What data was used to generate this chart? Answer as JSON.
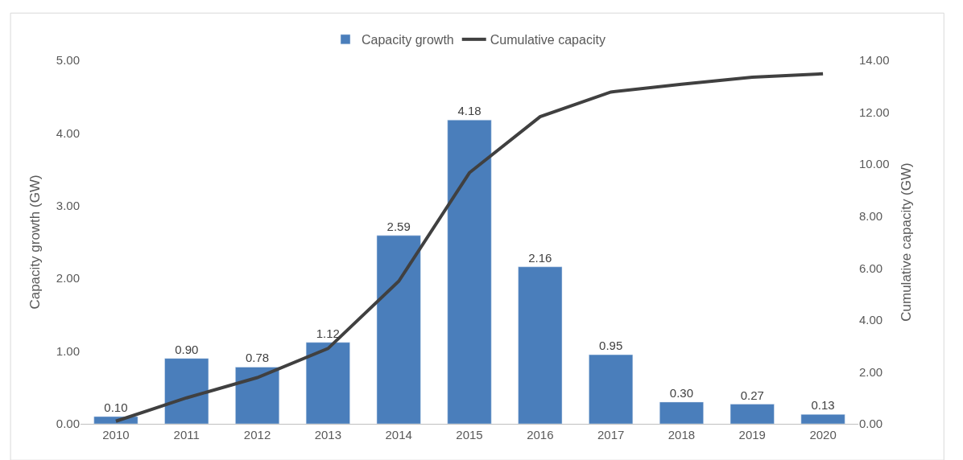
{
  "chart_data": {
    "type": "bar",
    "categories": [
      "2010",
      "2011",
      "2012",
      "2013",
      "2014",
      "2015",
      "2016",
      "2017",
      "2018",
      "2019",
      "2020"
    ],
    "ylabel": "Capacity growth (GW)",
    "y2label": "Cumulative capacity (GW)",
    "series": [
      {
        "name": "Capacity growth",
        "color": "#4a7ebb",
        "values": [
          0.1,
          0.9,
          0.78,
          1.12,
          2.59,
          4.18,
          2.16,
          0.95,
          0.3,
          0.27,
          0.13
        ],
        "value_labels": [
          "0.10",
          "0.90",
          "0.78",
          "1.12",
          "2.59",
          "4.18",
          "2.16",
          "0.95",
          "0.30",
          "0.27",
          "0.13"
        ]
      },
      {
        "name": "Cumulative capacity",
        "type": "line",
        "axis": "y2",
        "color": "#404040",
        "marker": "none",
        "values": [
          0.1,
          1.0,
          1.78,
          2.9,
          5.49,
          9.67,
          11.83,
          12.78,
          13.08,
          13.35,
          13.48
        ]
      }
    ],
    "ylim": [
      0,
      5
    ],
    "yticks": [
      {
        "value": 0,
        "label": "0.00"
      },
      {
        "value": 1,
        "label": "1.00"
      },
      {
        "value": 2,
        "label": "2.00"
      },
      {
        "value": 3,
        "label": "3.00"
      },
      {
        "value": 4,
        "label": "4.00"
      },
      {
        "value": 5,
        "label": "5.00"
      }
    ],
    "y2lim": [
      0,
      14
    ],
    "y2ticks": [
      {
        "value": 0,
        "label": "0.00"
      },
      {
        "value": 2,
        "label": "2.00"
      },
      {
        "value": 4,
        "label": "4.00"
      },
      {
        "value": 6,
        "label": "6.00"
      },
      {
        "value": 8,
        "label": "8.00"
      },
      {
        "value": 10,
        "label": "10.00"
      },
      {
        "value": 12,
        "label": "12.00"
      },
      {
        "value": 14,
        "label": "14.00"
      }
    ],
    "legend": "top"
  }
}
